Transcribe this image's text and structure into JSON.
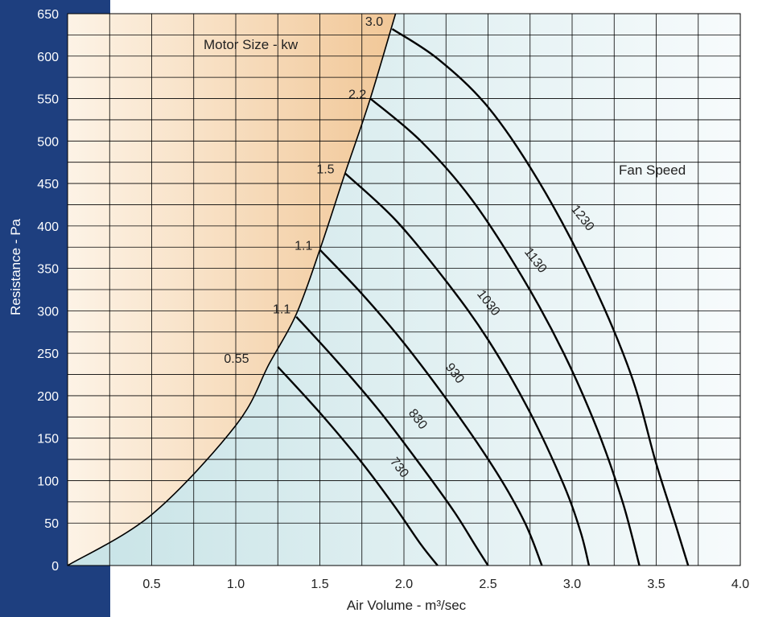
{
  "colors": {
    "sidebar": "#1e3f7f",
    "motor_region_light": "#fdf3e6",
    "motor_region_dark": "#f1c797",
    "fan_region_left": "#c7e3e6",
    "fan_region_right": "#f7fbfc",
    "curve": "#000000"
  },
  "chart_data": {
    "type": "line",
    "xlabel": "Air Volume - m³/sec",
    "ylabel": "Resistance - Pa",
    "xlim": [
      0,
      4.0
    ],
    "ylim": [
      0,
      650
    ],
    "x_ticks": [
      "0.5",
      "1.0",
      "1.5",
      "2.0",
      "2.5",
      "3.0",
      "3.5",
      "4.0"
    ],
    "y_ticks": [
      "0",
      "50",
      "100",
      "150",
      "200",
      "250",
      "300",
      "350",
      "400",
      "450",
      "500",
      "550",
      "600",
      "650"
    ],
    "grid": true,
    "annotations": {
      "motor_region": "Motor Size - kw",
      "fan_region": "Fan Speed"
    },
    "boundary": {
      "name": "motor limit",
      "points": [
        [
          0,
          0
        ],
        [
          0.5,
          60
        ],
        [
          1.0,
          165
        ],
        [
          1.2,
          238
        ],
        [
          1.36,
          296
        ],
        [
          1.5,
          372
        ],
        [
          1.65,
          462
        ],
        [
          1.8,
          550
        ],
        [
          1.95,
          650
        ]
      ]
    },
    "motor_sizes": [
      {
        "label": "0.55",
        "x": 0.93,
        "y": 243
      },
      {
        "label": "1.1",
        "x": 1.22,
        "y": 301
      },
      {
        "label": "1.1",
        "x": 1.35,
        "y": 376
      },
      {
        "label": "1.5",
        "x": 1.48,
        "y": 466
      },
      {
        "label": "2.2",
        "x": 1.67,
        "y": 554
      },
      {
        "label": "3.0",
        "x": 1.77,
        "y": 640
      }
    ],
    "series": [
      {
        "name": "730",
        "label_at": [
          1.97,
          115
        ],
        "points": [
          [
            1.25,
            234
          ],
          [
            1.5,
            180
          ],
          [
            1.75,
            121
          ],
          [
            1.95,
            68
          ],
          [
            2.1,
            25
          ],
          [
            2.2,
            0
          ]
        ]
      },
      {
        "name": "830",
        "label_at": [
          2.08,
          172
        ],
        "points": [
          [
            1.36,
            293
          ],
          [
            1.6,
            241
          ],
          [
            1.85,
            183
          ],
          [
            2.1,
            118
          ],
          [
            2.3,
            63
          ],
          [
            2.42,
            25
          ],
          [
            2.5,
            0
          ]
        ]
      },
      {
        "name": "930",
        "label_at": [
          2.3,
          226
        ],
        "points": [
          [
            1.5,
            372
          ],
          [
            1.75,
            320
          ],
          [
            2.0,
            262
          ],
          [
            2.3,
            183
          ],
          [
            2.55,
            110
          ],
          [
            2.72,
            50
          ],
          [
            2.82,
            0
          ]
        ]
      },
      {
        "name": "1030",
        "label_at": [
          2.5,
          309
        ],
        "points": [
          [
            1.65,
            462
          ],
          [
            1.95,
            407
          ],
          [
            2.25,
            335
          ],
          [
            2.5,
            266
          ],
          [
            2.75,
            180
          ],
          [
            2.95,
            95
          ],
          [
            3.05,
            40
          ],
          [
            3.1,
            0
          ]
        ]
      },
      {
        "name": "1130",
        "label_at": [
          2.78,
          359
        ],
        "points": [
          [
            1.8,
            550
          ],
          [
            2.1,
            500
          ],
          [
            2.4,
            432
          ],
          [
            2.7,
            341
          ],
          [
            2.95,
            250
          ],
          [
            3.15,
            160
          ],
          [
            3.3,
            75
          ],
          [
            3.4,
            0
          ]
        ]
      },
      {
        "name": "1230",
        "label_at": [
          3.06,
          409
        ],
        "points": [
          [
            1.93,
            632
          ],
          [
            2.2,
            597
          ],
          [
            2.5,
            540
          ],
          [
            2.8,
            453
          ],
          [
            3.1,
            342
          ],
          [
            3.35,
            225
          ],
          [
            3.5,
            120
          ],
          [
            3.62,
            45
          ],
          [
            3.69,
            0
          ]
        ]
      }
    ]
  }
}
